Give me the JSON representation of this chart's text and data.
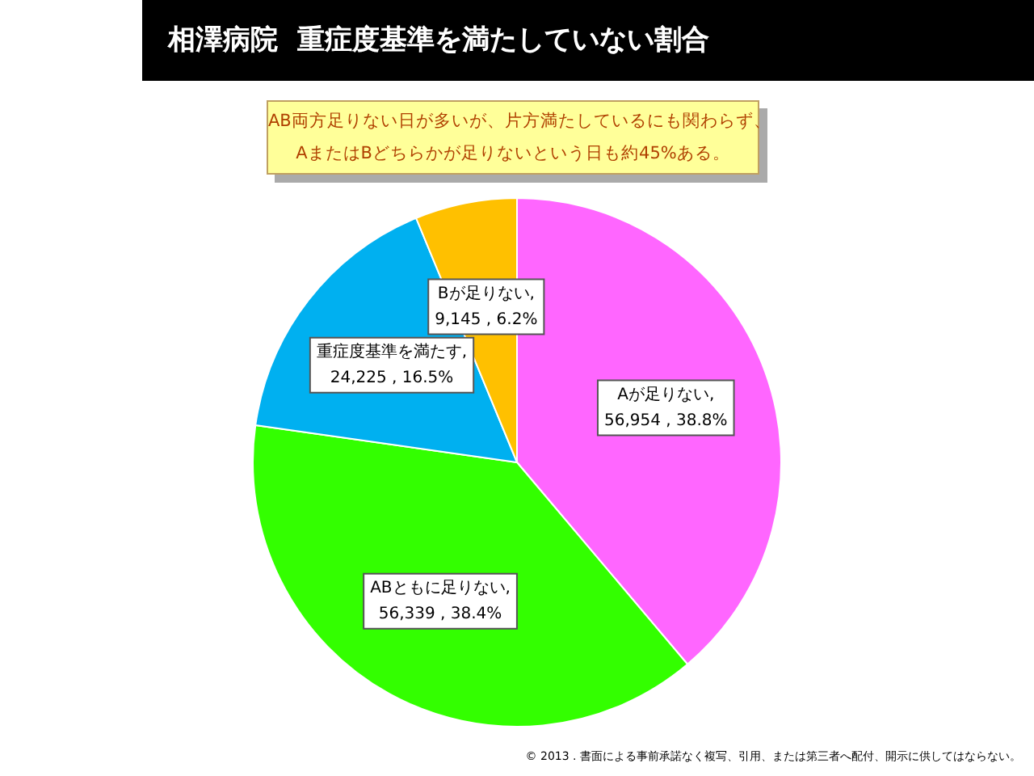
{
  "chart_data": {
    "type": "pie",
    "title": "相澤病院  重症度基準を満たしていない割合",
    "categories": [
      "Aが足りない",
      "ABともに足りない",
      "重症度基準を満たす",
      "Bが足りない"
    ],
    "values": [
      56954,
      56339,
      24225,
      9145
    ],
    "value_labels": [
      ", 56,954 , 38.8%",
      ", 56,339 , 38.4%",
      ", 24,225 , 16.5%",
      ", 9,145 , 6.2%"
    ],
    "colors": [
      "#ff66ff",
      "#33ff00",
      "#00b0f0",
      "#ffc000"
    ],
    "legend": false,
    "annotations": [
      "AB両方足りない日が多いが、片方満たしているにも関わらず、\nAまたはBどちらかが足りないという日も約45%ある。",
      "© 2013 . 書面による事前承諾なく複写、引用、または第三者へ配付、開示に供してはならない。"
    ]
  }
}
